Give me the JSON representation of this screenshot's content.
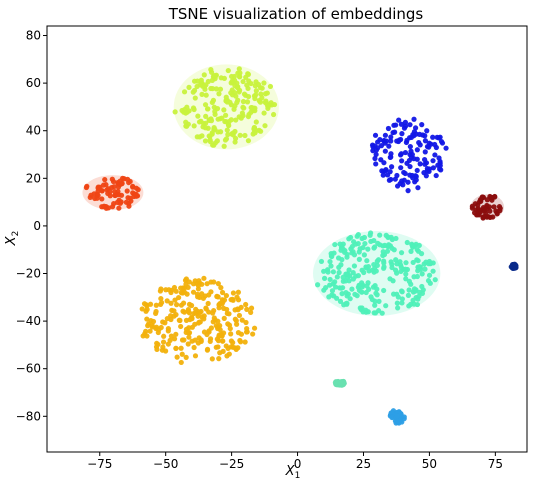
{
  "chart_data": {
    "type": "scatter",
    "title": "TSNE visualization of embeddings",
    "xlabel": "X",
    "xlabel_sub": "1",
    "ylabel": "X",
    "ylabel_sub": "2",
    "xlim": [
      -95,
      87
    ],
    "ylim": [
      -95,
      84
    ],
    "xticks": [
      -75,
      -50,
      -25,
      0,
      25,
      50,
      75
    ],
    "yticks": [
      -80,
      -60,
      -40,
      -20,
      0,
      20,
      40,
      60,
      80
    ],
    "grid": false,
    "clusters": [
      {
        "color": "#c8f23c",
        "center": [
          -27,
          50
        ],
        "spread": [
          19,
          17
        ],
        "density": 1.0,
        "halo": true
      },
      {
        "color": "#1217e6",
        "center": [
          42,
          30
        ],
        "spread": [
          15,
          15
        ],
        "density": 0.8,
        "halo": false
      },
      {
        "color": "#ef4414",
        "center": [
          -70,
          14
        ],
        "spread": [
          11,
          7
        ],
        "density": 0.9,
        "halo": true
      },
      {
        "color": "#8b0d0d",
        "center": [
          72,
          8
        ],
        "spread": [
          6,
          5
        ],
        "density": 0.7,
        "halo": true
      },
      {
        "color": "#f2b10c",
        "center": [
          -38,
          -40
        ],
        "spread": [
          22,
          18
        ],
        "density": 1.0,
        "halo": false
      },
      {
        "color": "#4ff0b8",
        "center": [
          30,
          -20
        ],
        "spread": [
          23,
          17
        ],
        "density": 1.0,
        "halo": true
      },
      {
        "color": "#2d9fe6",
        "center": [
          38,
          -80
        ],
        "spread": [
          3,
          3
        ],
        "density": 0.6,
        "halo": false
      },
      {
        "color": "#69e0b0",
        "center": [
          16,
          -66
        ],
        "spread": [
          2,
          1
        ],
        "density": 0.3,
        "halo": false
      },
      {
        "color": "#0a2a8a",
        "center": [
          82,
          -17
        ],
        "spread": [
          1,
          1
        ],
        "density": 0.15,
        "halo": false
      }
    ]
  }
}
